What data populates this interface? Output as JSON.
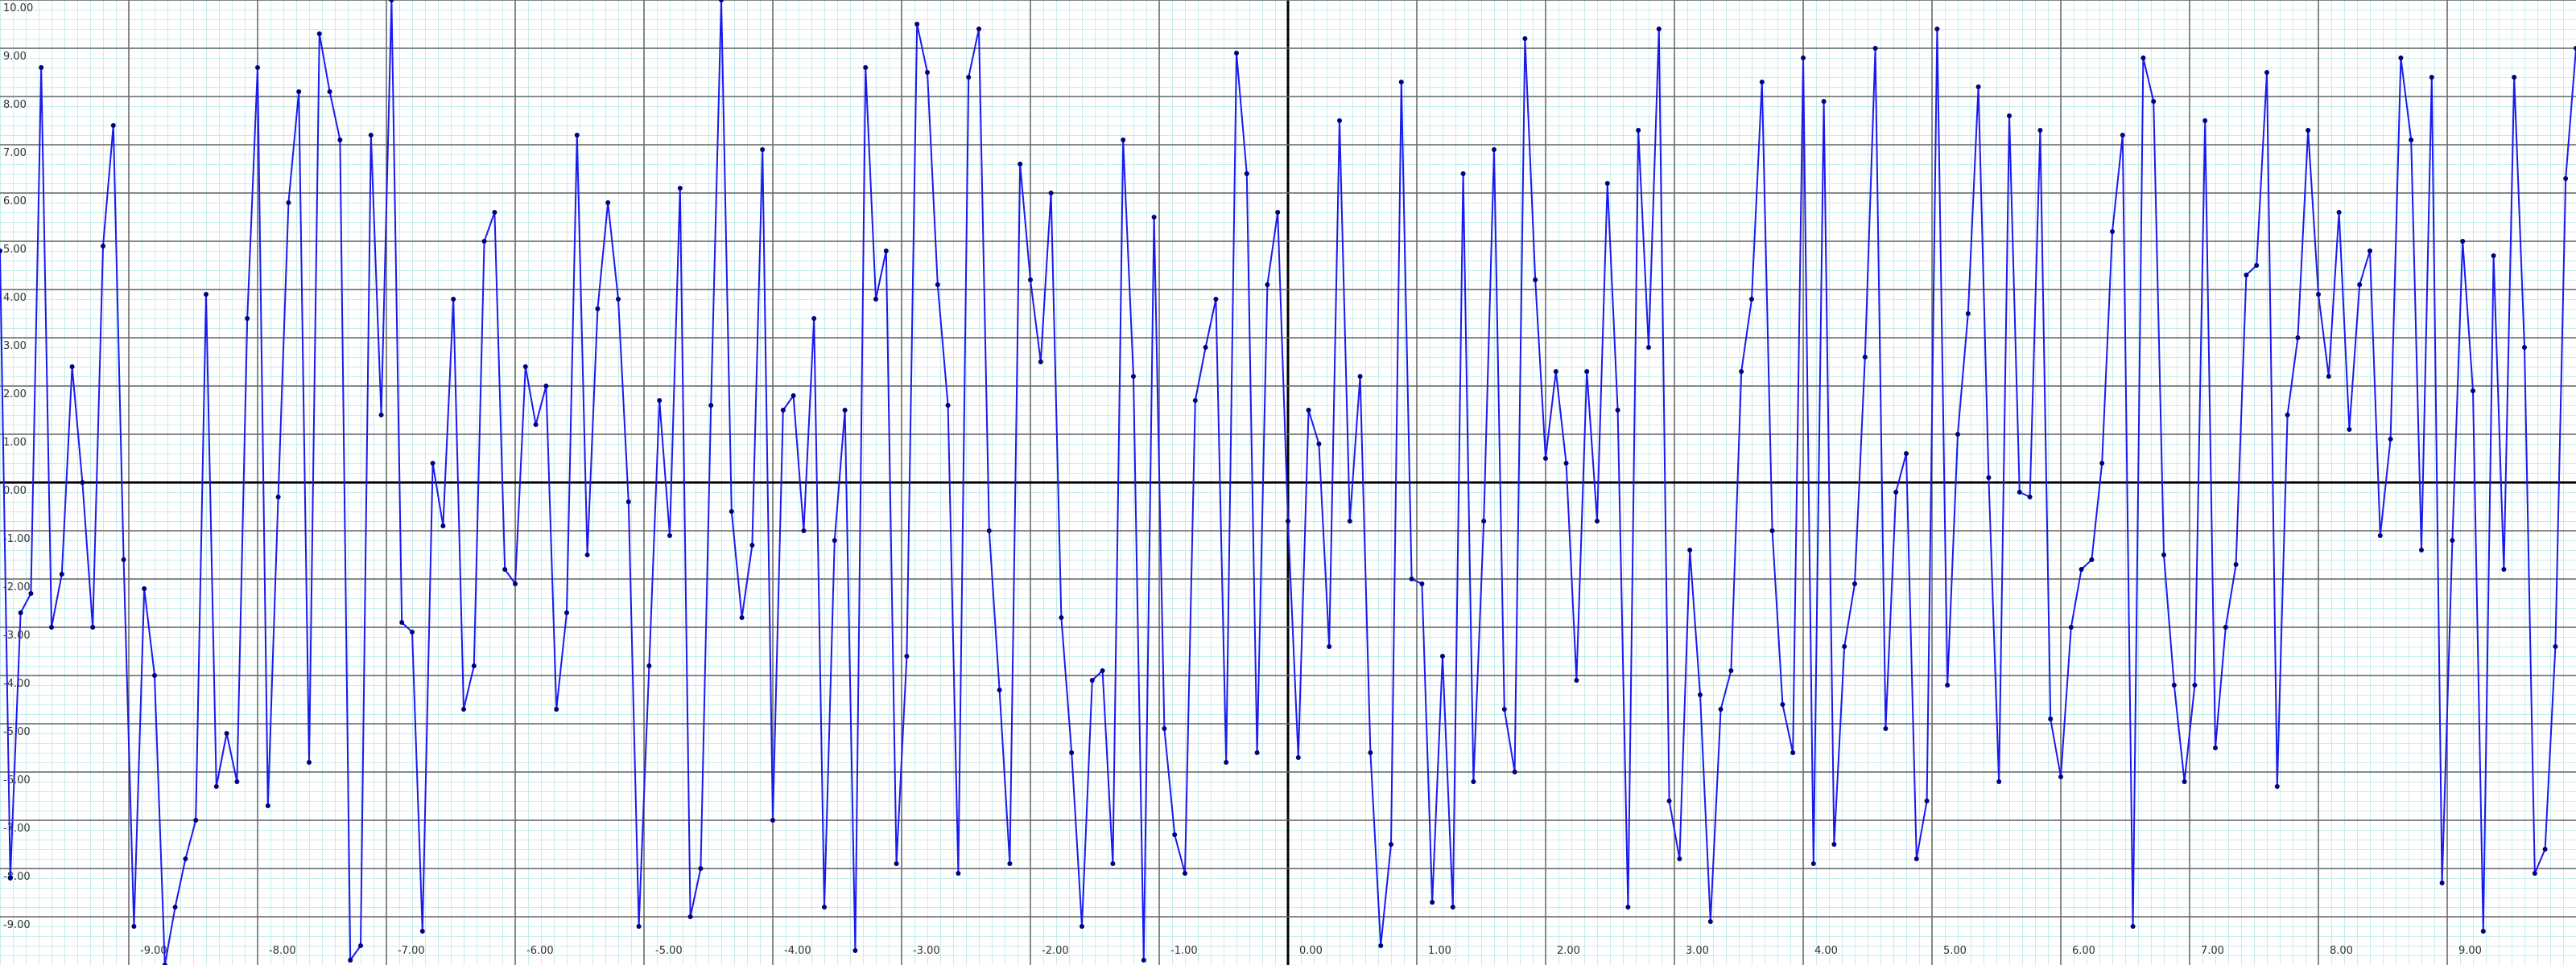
{
  "chart_data": {
    "type": "line",
    "x": [
      -10,
      -9.92,
      -9.84,
      -9.76,
      -9.68,
      -9.6,
      -9.52,
      -9.44,
      -9.36,
      -9.28,
      -9.2,
      -9.12,
      -9.04,
      -8.96,
      -8.88,
      -8.8,
      -8.72,
      -8.64,
      -8.56,
      -8.48,
      -8.4,
      -8.32,
      -8.24,
      -8.16,
      -8.08,
      -8,
      -7.92,
      -7.84,
      -7.76,
      -7.68,
      -7.6,
      -7.52,
      -7.44,
      -7.36,
      -7.28,
      -7.2,
      -7.12,
      -7.04,
      -6.96,
      -6.88,
      -6.8,
      -6.72,
      -6.64,
      -6.56,
      -6.48,
      -6.4,
      -6.32,
      -6.24,
      -6.16,
      -6.08,
      -6,
      -5.92,
      -5.84,
      -5.76,
      -5.68,
      -5.6,
      -5.52,
      -5.44,
      -5.36,
      -5.28,
      -5.2,
      -5.12,
      -5.04,
      -4.96,
      -4.88,
      -4.8,
      -4.72,
      -4.64,
      -4.56,
      -4.48,
      -4.4,
      -4.32,
      -4.24,
      -4.16,
      -4.08,
      -4,
      -3.92,
      -3.84,
      -3.76,
      -3.68,
      -3.6,
      -3.52,
      -3.44,
      -3.36,
      -3.28,
      -3.2,
      -3.12,
      -3.04,
      -2.96,
      -2.88,
      -2.8,
      -2.72,
      -2.64,
      -2.56,
      -2.48,
      -2.4,
      -2.32,
      -2.24,
      -2.16,
      -2.08,
      -2,
      -1.92,
      -1.84,
      -1.76,
      -1.68,
      -1.6,
      -1.52,
      -1.44,
      -1.36,
      -1.28,
      -1.2,
      -1.12,
      -1.04,
      -0.96,
      -0.88,
      -0.8,
      -0.72,
      -0.64,
      -0.56,
      -0.48,
      -0.4,
      -0.32,
      -0.24,
      -0.16,
      -0.08,
      0,
      0.08,
      0.16,
      0.24,
      0.32,
      0.4,
      0.48,
      0.56,
      0.64,
      0.72,
      0.8,
      0.88,
      0.96,
      1.04,
      1.12,
      1.2,
      1.28,
      1.36,
      1.44,
      1.52,
      1.6,
      1.68,
      1.76,
      1.84,
      1.92,
      2,
      2.08,
      2.16,
      2.24,
      2.32,
      2.4,
      2.48,
      2.56,
      2.64,
      2.72,
      2.8,
      2.88,
      2.96,
      3.04,
      3.12,
      3.2,
      3.28,
      3.36,
      3.44,
      3.52,
      3.6,
      3.68,
      3.76,
      3.84,
      3.92,
      4,
      4.08,
      4.16,
      4.24,
      4.32,
      4.4,
      4.48,
      4.56,
      4.64,
      4.72,
      4.8,
      4.88,
      4.96,
      5.04,
      5.12,
      5.2,
      5.28,
      5.36,
      5.44,
      5.52,
      5.6,
      5.68,
      5.76,
      5.84,
      5.92,
      6,
      6.08,
      6.16,
      6.24,
      6.32,
      6.4,
      6.48,
      6.56,
      6.64,
      6.72,
      6.8,
      6.88,
      6.96,
      7.04,
      7.12,
      7.2,
      7.28,
      7.36,
      7.44,
      7.52,
      7.6,
      7.68,
      7.76,
      7.84,
      7.92,
      8,
      8.08,
      8.16,
      8.24,
      8.32,
      8.4,
      8.48,
      8.56,
      8.64,
      8.72,
      8.8,
      8.88,
      8.96,
      9.04,
      9.12,
      9.2,
      9.28,
      9.36,
      9.44,
      9.52,
      9.6,
      9.68,
      9.76,
      9.84,
      9.92,
      10
    ],
    "values": [
      4.8,
      -8.2,
      -2.7,
      -2.3,
      8.6,
      -3.0,
      -1.9,
      2.4,
      0.0,
      -3.0,
      4.9,
      7.4,
      -1.6,
      -9.2,
      -2.2,
      -4.0,
      -10.0,
      -8.8,
      -7.8,
      -7.0,
      3.9,
      -6.3,
      -5.2,
      -6.2,
      3.4,
      8.6,
      -6.7,
      -0.3,
      5.8,
      8.1,
      -5.8,
      9.3,
      8.1,
      7.1,
      -9.9,
      -9.6,
      7.2,
      1.4,
      10.0,
      -2.9,
      -3.1,
      -9.3,
      0.4,
      -0.9,
      3.8,
      -4.7,
      -3.8,
      5.0,
      5.6,
      -1.8,
      -2.1,
      2.4,
      1.2,
      2.0,
      -4.7,
      -2.7,
      7.2,
      -1.5,
      3.6,
      5.8,
      3.8,
      -0.4,
      -9.2,
      -3.8,
      1.7,
      -1.1,
      6.1,
      -9.0,
      -8.0,
      1.6,
      10.0,
      -0.6,
      -2.8,
      -1.3,
      6.9,
      -7.0,
      1.5,
      1.8,
      -1.0,
      3.4,
      -8.8,
      -1.2,
      1.5,
      -9.7,
      8.6,
      3.8,
      4.8,
      -7.9,
      -3.6,
      9.5,
      8.5,
      4.1,
      1.6,
      -8.1,
      8.4,
      9.4,
      -1.0,
      -4.3,
      -7.9,
      6.6,
      4.2,
      2.5,
      6.0,
      -2.8,
      -5.6,
      -9.2,
      -4.1,
      -3.9,
      -7.9,
      7.1,
      2.2,
      -9.9,
      5.5,
      -5.1,
      -7.3,
      -8.1,
      1.7,
      2.8,
      3.8,
      -5.8,
      8.9,
      6.4,
      -5.6,
      4.1,
      5.6,
      -0.8,
      -5.7,
      1.5,
      0.8,
      -3.4,
      7.5,
      -0.8,
      2.2,
      -5.6,
      -9.6,
      -7.5,
      8.3,
      -2.0,
      -2.1,
      -8.7,
      -3.6,
      -8.8,
      6.4,
      -6.2,
      -0.8,
      6.9,
      -4.7,
      -6.0,
      9.2,
      4.2,
      0.5,
      2.3,
      0.4,
      -4.1,
      2.3,
      -0.8,
      6.2,
      1.5,
      -8.8,
      7.3,
      2.8,
      9.4,
      -6.6,
      -7.8,
      -1.4,
      -4.4,
      -9.1,
      -4.7,
      -3.9,
      2.3,
      3.8,
      8.3,
      -1.0,
      -4.6,
      -5.6,
      8.8,
      -7.9,
      7.9,
      -7.5,
      -3.4,
      -2.1,
      2.6,
      9.0,
      -5.1,
      -0.2,
      0.6,
      -7.8,
      -6.6,
      9.4,
      -4.2,
      1.0,
      3.5,
      8.2,
      0.1,
      -6.2,
      7.6,
      -0.2,
      -0.3,
      7.3,
      -4.9,
      -6.1,
      -3.0,
      -1.8,
      -1.6,
      0.4,
      5.2,
      7.2,
      -9.2,
      8.8,
      7.9,
      -1.5,
      -4.2,
      -6.2,
      -4.2,
      7.5,
      -5.5,
      -3.0,
      -1.7,
      4.3,
      4.5,
      8.5,
      -6.3,
      1.4,
      3.0,
      7.3,
      3.9,
      2.2,
      5.6,
      1.1,
      4.1,
      4.8,
      -1.1,
      0.9,
      8.8,
      7.1,
      -1.4,
      8.4,
      -8.3,
      -1.2,
      5.0,
      1.9,
      -9.3,
      4.7,
      -1.8,
      8.4,
      2.8,
      -8.1,
      -7.6,
      -3.4,
      6.3,
      9.0
    ],
    "color": "#1a1aee",
    "marker_color": "#00007a",
    "xlim": [
      -10,
      10
    ],
    "ylim": [
      -10,
      10
    ],
    "xticks": [
      {
        "value": -9,
        "label": "-9.00"
      },
      {
        "value": -8,
        "label": "-8.00"
      },
      {
        "value": -7,
        "label": "-7.00"
      },
      {
        "value": -6,
        "label": "-6.00"
      },
      {
        "value": -5,
        "label": "-5.00"
      },
      {
        "value": -4,
        "label": "-4.00"
      },
      {
        "value": -3,
        "label": "-3.00"
      },
      {
        "value": -2,
        "label": "-2.00"
      },
      {
        "value": -1,
        "label": "-1.00"
      },
      {
        "value": 0,
        "label": "0.00"
      },
      {
        "value": 1,
        "label": "1.00"
      },
      {
        "value": 2,
        "label": "2.00"
      },
      {
        "value": 3,
        "label": "3.00"
      },
      {
        "value": 4,
        "label": "4.00"
      },
      {
        "value": 5,
        "label": "5.00"
      },
      {
        "value": 6,
        "label": "6.00"
      },
      {
        "value": 7,
        "label": "7.00"
      },
      {
        "value": 8,
        "label": "8.00"
      },
      {
        "value": 9,
        "label": "9.00"
      }
    ],
    "yticks": [
      {
        "value": 10,
        "label": "10.00"
      },
      {
        "value": 9,
        "label": "9.00"
      },
      {
        "value": 8,
        "label": "8.00"
      },
      {
        "value": 7,
        "label": "7.00"
      },
      {
        "value": 6,
        "label": "6.00"
      },
      {
        "value": 5,
        "label": "5.00"
      },
      {
        "value": 4,
        "label": "4.00"
      },
      {
        "value": 3,
        "label": "3.00"
      },
      {
        "value": 2,
        "label": "2.00"
      },
      {
        "value": 1,
        "label": "1.00"
      },
      {
        "value": 0,
        "label": "0.00"
      },
      {
        "value": -1,
        "label": "-1.00"
      },
      {
        "value": -2,
        "label": "-2.00"
      },
      {
        "value": -3,
        "label": "-3.00"
      },
      {
        "value": -4,
        "label": "-4.00"
      },
      {
        "value": -5,
        "label": "-5.00"
      },
      {
        "value": -6,
        "label": "-6.00"
      },
      {
        "value": -7,
        "label": "-7.00"
      },
      {
        "value": -8,
        "label": "-8.00"
      },
      {
        "value": -9,
        "label": "-9.00"
      }
    ],
    "grid": true
  }
}
